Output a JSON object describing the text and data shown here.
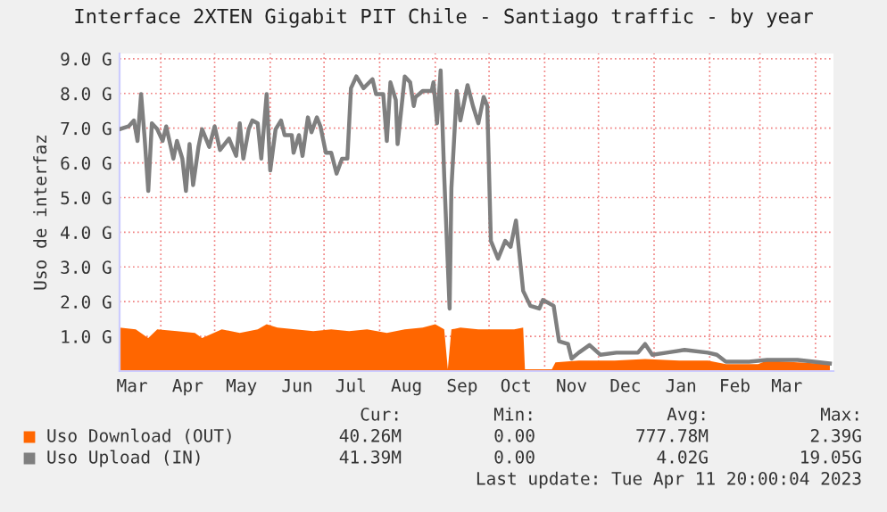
{
  "chart_data": {
    "type": "line",
    "title": "Interface 2XTEN Gigabit PIT Chile - Santiago traffic - by year",
    "ylabel": "Uso de interfaz",
    "xlim": [
      "2022-03-09",
      "2023-04-11"
    ],
    "xticks": [
      {
        "value": "2022-03-16",
        "label": "Mar"
      },
      {
        "value": "2022-04-01",
        "label": null
      },
      {
        "value": "2022-04-16",
        "label": "Apr"
      },
      {
        "value": "2022-05-01",
        "label": null
      },
      {
        "value": "2022-05-16",
        "label": "May"
      },
      {
        "value": "2022-06-01",
        "label": null
      },
      {
        "value": "2022-06-16",
        "label": "Jun"
      },
      {
        "value": "2022-07-01",
        "label": null
      },
      {
        "value": "2022-07-16",
        "label": "Jul"
      },
      {
        "value": "2022-08-01",
        "label": null
      },
      {
        "value": "2022-08-16",
        "label": "Aug"
      },
      {
        "value": "2022-09-01",
        "label": null
      },
      {
        "value": "2022-09-16",
        "label": "Sep"
      },
      {
        "value": "2022-10-01",
        "label": null
      },
      {
        "value": "2022-10-16",
        "label": "Oct"
      },
      {
        "value": "2022-11-01",
        "label": null
      },
      {
        "value": "2022-11-16",
        "label": "Nov"
      },
      {
        "value": "2022-12-01",
        "label": null
      },
      {
        "value": "2022-12-16",
        "label": "Dec"
      },
      {
        "value": "2023-01-01",
        "label": null
      },
      {
        "value": "2023-01-16",
        "label": "Jan"
      },
      {
        "value": "2023-02-01",
        "label": null
      },
      {
        "value": "2023-02-15",
        "label": "Feb"
      },
      {
        "value": "2023-03-01",
        "label": null
      },
      {
        "value": "2023-03-16",
        "label": "Mar"
      },
      {
        "value": "2023-04-01",
        "label": null
      }
    ],
    "ylim": [
      0,
      9.15
    ],
    "yticks": [
      {
        "value": 1,
        "label": "1.0 G"
      },
      {
        "value": 2,
        "label": "2.0 G"
      },
      {
        "value": 3,
        "label": "3.0 G"
      },
      {
        "value": 4,
        "label": "4.0 G"
      },
      {
        "value": 5,
        "label": "5.0 G"
      },
      {
        "value": 6,
        "label": "6.0 G"
      },
      {
        "value": 7,
        "label": "7.0 G"
      },
      {
        "value": 8,
        "label": "8.0 G"
      },
      {
        "value": 9,
        "label": "9.0 G"
      }
    ],
    "grid": true,
    "legend": "bottom",
    "series": [
      {
        "name": "Uso Download (OUT)",
        "type": "area",
        "color": "#ff6600",
        "x": [
          "2022-03-09",
          "2022-03-18",
          "2022-03-25",
          "2022-03-30",
          "2022-04-10",
          "2022-04-20",
          "2022-04-24",
          "2022-05-05",
          "2022-05-15",
          "2022-05-25",
          "2022-05-30",
          "2022-06-05",
          "2022-06-15",
          "2022-06-25",
          "2022-07-05",
          "2022-07-15",
          "2022-07-25",
          "2022-08-05",
          "2022-08-15",
          "2022-08-25",
          "2022-09-01",
          "2022-09-06",
          "2022-09-08",
          "2022-09-10",
          "2022-09-15",
          "2022-09-25",
          "2022-10-05",
          "2022-10-15",
          "2022-10-20",
          "2022-10-21",
          "2022-11-05",
          "2022-11-07",
          "2022-11-20",
          "2022-12-10",
          "2022-12-27",
          "2023-01-15",
          "2023-01-31",
          "2023-02-10",
          "2023-02-28",
          "2023-03-05",
          "2023-03-22",
          "2023-04-09"
        ],
        "values": [
          1.25,
          1.2,
          0.95,
          1.2,
          1.15,
          1.1,
          0.95,
          1.2,
          1.1,
          1.2,
          1.35,
          1.25,
          1.2,
          1.15,
          1.2,
          1.15,
          1.2,
          1.1,
          1.2,
          1.25,
          1.35,
          1.2,
          0.05,
          1.2,
          1.25,
          1.2,
          1.2,
          1.2,
          1.25,
          0.05,
          0.05,
          0.25,
          0.3,
          0.3,
          0.35,
          0.3,
          0.3,
          0.2,
          0.2,
          0.3,
          0.25,
          0.2
        ]
      },
      {
        "name": "Uso Upload (IN)",
        "color": "#7f7f7f",
        "x": [
          "2022-03-09",
          "2022-03-14",
          "2022-03-17",
          "2022-03-19",
          "2022-03-21",
          "2022-03-23",
          "2022-03-25",
          "2022-03-27",
          "2022-03-30",
          "2022-04-02",
          "2022-04-04",
          "2022-04-08",
          "2022-04-10",
          "2022-04-13",
          "2022-04-15",
          "2022-04-17",
          "2022-04-19",
          "2022-04-22",
          "2022-04-24",
          "2022-04-28",
          "2022-05-01",
          "2022-05-04",
          "2022-05-09",
          "2022-05-13",
          "2022-05-15",
          "2022-05-17",
          "2022-05-20",
          "2022-05-22",
          "2022-05-25",
          "2022-05-27",
          "2022-05-30",
          "2022-06-01",
          "2022-06-04",
          "2022-06-07",
          "2022-06-09",
          "2022-06-13",
          "2022-06-14",
          "2022-06-17",
          "2022-06-19",
          "2022-06-22",
          "2022-06-24",
          "2022-06-27",
          "2022-06-29",
          "2022-07-02",
          "2022-07-05",
          "2022-07-08",
          "2022-07-11",
          "2022-07-14",
          "2022-07-16",
          "2022-07-19",
          "2022-07-23",
          "2022-07-28",
          "2022-07-30",
          "2022-08-03",
          "2022-08-05",
          "2022-08-07",
          "2022-08-10",
          "2022-08-11",
          "2022-08-15",
          "2022-08-18",
          "2022-08-20",
          "2022-08-21",
          "2022-08-23",
          "2022-08-25",
          "2022-08-30",
          "2022-08-31",
          "2022-09-02",
          "2022-09-04",
          "2022-09-06",
          "2022-09-09",
          "2022-09-10",
          "2022-09-13",
          "2022-09-15",
          "2022-09-19",
          "2022-09-22",
          "2022-09-25",
          "2022-09-28",
          "2022-09-30",
          "2022-10-02",
          "2022-10-06",
          "2022-10-10",
          "2022-10-13",
          "2022-10-16",
          "2022-10-20",
          "2022-10-24",
          "2022-10-29",
          "2022-10-31",
          "2022-11-06",
          "2022-11-09",
          "2022-11-14",
          "2022-11-16",
          "2022-11-20",
          "2022-11-26",
          "2022-12-02",
          "2022-12-11",
          "2022-12-23",
          "2022-12-27",
          "2022-12-31",
          "2023-01-08",
          "2023-01-18",
          "2023-01-31",
          "2023-02-05",
          "2023-02-10",
          "2023-02-23",
          "2023-03-05",
          "2023-03-22",
          "2023-04-09"
        ],
        "values": [
          6.97,
          7.05,
          7.22,
          6.63,
          7.98,
          6.7,
          5.19,
          7.14,
          6.97,
          6.63,
          7.05,
          6.12,
          6.63,
          6.12,
          5.19,
          6.54,
          5.36,
          6.46,
          6.97,
          6.46,
          7.05,
          6.37,
          6.7,
          6.2,
          7.14,
          6.12,
          6.97,
          7.22,
          7.14,
          6.12,
          7.98,
          5.78,
          6.97,
          7.22,
          6.8,
          6.8,
          6.29,
          6.8,
          6.2,
          7.31,
          6.88,
          7.31,
          7.05,
          6.29,
          6.29,
          5.69,
          6.12,
          6.12,
          8.15,
          8.49,
          8.15,
          8.41,
          7.98,
          7.98,
          6.63,
          8.32,
          7.81,
          6.54,
          8.49,
          8.32,
          7.64,
          7.9,
          7.98,
          8.07,
          8.07,
          8.32,
          7.14,
          8.66,
          5.61,
          1.8,
          5.27,
          8.07,
          7.22,
          8.24,
          7.64,
          7.14,
          7.9,
          7.64,
          3.75,
          3.24,
          3.75,
          3.58,
          4.34,
          2.31,
          1.88,
          1.8,
          2.05,
          1.88,
          0.86,
          0.78,
          0.36,
          0.53,
          0.75,
          0.47,
          0.53,
          0.53,
          0.78,
          0.47,
          0.53,
          0.61,
          0.53,
          0.47,
          0.27,
          0.27,
          0.32,
          0.32,
          0.22
        ]
      }
    ],
    "annotations": [
      "Cur:",
      "Min:",
      "Avg:",
      "Max:",
      "40.26M",
      "0.00",
      "777.78M",
      "2.39G",
      "41.39M",
      "0.00",
      "4.02G",
      "19.05G",
      "Last update: Tue Apr 11 20:00:04 2023"
    ]
  }
}
